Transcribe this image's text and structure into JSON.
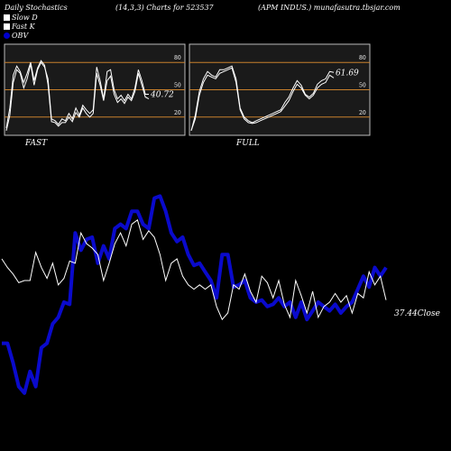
{
  "header": {
    "left": "Daily Stochastics",
    "center": "(14,3,3) Charts for 523537",
    "right": "(APM INDUS.) munafasutra.tbsjar.com"
  },
  "legend": [
    {
      "label": "Slow  D",
      "color": "#ffffff"
    },
    {
      "label": "Fast K",
      "color": "#ffffff"
    },
    {
      "label": "OBV",
      "color": "#0000cc"
    }
  ],
  "colors": {
    "background": "#000000",
    "panel_bg": "#1a1a1a",
    "panel_border": "#bbbbbb",
    "level_line": "#c8802c",
    "stoch_line": "#ffffff",
    "obv_line": "#0a0acc",
    "price_line": "#ffffff"
  },
  "chart_data": [
    {
      "type": "line",
      "title": "FAST",
      "ylim": [
        0,
        100
      ],
      "levels": [
        20,
        50,
        80
      ],
      "tick_labels": [
        "80",
        "50",
        "20"
      ],
      "last_value_label": "40.72",
      "series": [
        {
          "values": [
            5,
            22,
            58,
            72,
            68,
            52,
            62,
            78,
            55,
            72,
            80,
            75,
            62,
            18,
            16,
            12,
            18,
            16,
            24,
            18,
            30,
            22,
            33,
            28,
            24,
            28,
            75,
            60,
            40,
            70,
            72,
            50,
            40,
            44,
            38,
            45,
            40,
            52,
            72,
            60,
            45,
            45
          ]
        },
        {
          "values": [
            8,
            30,
            66,
            76,
            70,
            58,
            68,
            80,
            60,
            74,
            82,
            77,
            56,
            15,
            14,
            10,
            14,
            14,
            20,
            15,
            25,
            20,
            30,
            24,
            20,
            24,
            68,
            55,
            38,
            60,
            65,
            45,
            36,
            40,
            35,
            42,
            38,
            48,
            68,
            55,
            42,
            40
          ]
        }
      ]
    },
    {
      "type": "line",
      "title": "FULL",
      "ylim": [
        0,
        100
      ],
      "levels": [
        20,
        50,
        80
      ],
      "tick_labels": [
        "80",
        "50",
        "20"
      ],
      "last_value_label": "61.69",
      "series": [
        {
          "values": [
            5,
            22,
            48,
            62,
            70,
            66,
            64,
            72,
            72,
            74,
            76,
            62,
            30,
            20,
            16,
            14,
            16,
            18,
            20,
            22,
            24,
            26,
            28,
            36,
            42,
            52,
            60,
            55,
            45,
            42,
            46,
            56,
            60,
            62,
            70,
            69
          ]
        },
        {
          "values": [
            5,
            18,
            44,
            58,
            66,
            64,
            62,
            68,
            70,
            72,
            74,
            58,
            28,
            18,
            14,
            13,
            14,
            16,
            18,
            20,
            22,
            24,
            26,
            32,
            38,
            48,
            56,
            52,
            44,
            40,
            44,
            52,
            56,
            58,
            66,
            63
          ]
        }
      ]
    },
    {
      "type": "line",
      "title": "",
      "last_value_label": "37.44Close",
      "series": [
        {
          "name": "OBV",
          "values": [
            31,
            31,
            22,
            11,
            8,
            18,
            11,
            29,
            31,
            40,
            43,
            50,
            49,
            82,
            74,
            79,
            80,
            68,
            76,
            70,
            84,
            86,
            84,
            92,
            92,
            86,
            84,
            98,
            99,
            92,
            82,
            78,
            80,
            72,
            67,
            68,
            64,
            60,
            52,
            72,
            72,
            57,
            58,
            60,
            52,
            50,
            51,
            48,
            49,
            52,
            48,
            50,
            43,
            50,
            42,
            46,
            50,
            48,
            46,
            49,
            45,
            48,
            50,
            56,
            62,
            57,
            66,
            62,
            66
          ]
        },
        {
          "name": "Price",
          "values": [
            70,
            66,
            63,
            59,
            60,
            60,
            73,
            66,
            61,
            68,
            58,
            61,
            69,
            68,
            82,
            77,
            75,
            72,
            60,
            68,
            77,
            82,
            76,
            86,
            88,
            79,
            83,
            80,
            72,
            60,
            68,
            70,
            62,
            58,
            56,
            58,
            56,
            58,
            48,
            42,
            45,
            58,
            56,
            63,
            55,
            50,
            62,
            59,
            52,
            60,
            49,
            43,
            60,
            53,
            45,
            55,
            43,
            48,
            50,
            54,
            50,
            53,
            45,
            54,
            52,
            64,
            58,
            62,
            51
          ]
        }
      ]
    }
  ]
}
